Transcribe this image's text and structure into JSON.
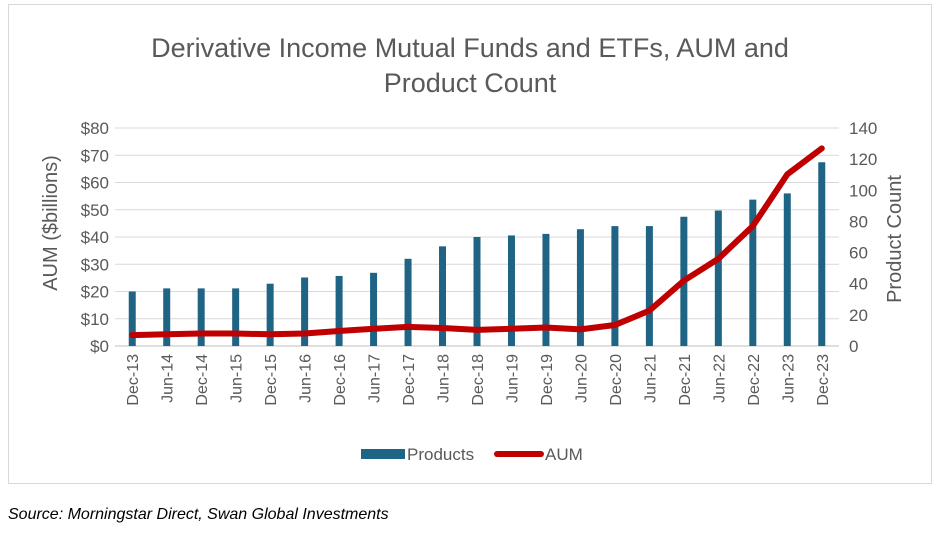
{
  "chart_data": {
    "type": "bar",
    "title": "Derivative Income Mutual Funds and ETFs, AUM and Product Count",
    "title_lines": [
      "Derivative Income Mutual Funds and ETFs, AUM and",
      "Product Count"
    ],
    "ylabel_left": "AUM ($billions)",
    "ylabel_right": "Product Count",
    "ylim_left": [
      0,
      80
    ],
    "ylim_right": [
      0,
      140
    ],
    "yticks_left": [
      "$0",
      "$10",
      "$20",
      "$30",
      "$40",
      "$50",
      "$60",
      "$70",
      "$80"
    ],
    "yticks_right": [
      "0",
      "20",
      "40",
      "60",
      "80",
      "100",
      "120",
      "140"
    ],
    "categories": [
      "Dec-13",
      "Jun-14",
      "Dec-14",
      "Jun-15",
      "Dec-15",
      "Jun-16",
      "Dec-16",
      "Jun-17",
      "Dec-17",
      "Jun-18",
      "Dec-18",
      "Jun-19",
      "Dec-19",
      "Jun-20",
      "Dec-20",
      "Jun-21",
      "Dec-21",
      "Jun-22",
      "Dec-22",
      "Jun-23",
      "Dec-23"
    ],
    "series": [
      {
        "name": "Products",
        "type": "bar",
        "axis": "right",
        "color": "#1f6385",
        "values": [
          35,
          37,
          37,
          37,
          40,
          44,
          45,
          47,
          56,
          64,
          70,
          71,
          72,
          75,
          77,
          77,
          83,
          87,
          94,
          98,
          118
        ]
      },
      {
        "name": "AUM",
        "type": "line",
        "axis": "left",
        "color": "#c00000",
        "values": [
          4,
          4.3,
          4.6,
          4.6,
          4.3,
          4.6,
          5.5,
          6.3,
          7,
          6.6,
          5.9,
          6.3,
          6.8,
          6.1,
          7.7,
          13,
          24,
          32,
          44,
          63,
          72.5
        ]
      }
    ],
    "grid": true,
    "legend_position": "bottom"
  },
  "source_text": "Source: Morningstar Direct, Swan Global Investments"
}
